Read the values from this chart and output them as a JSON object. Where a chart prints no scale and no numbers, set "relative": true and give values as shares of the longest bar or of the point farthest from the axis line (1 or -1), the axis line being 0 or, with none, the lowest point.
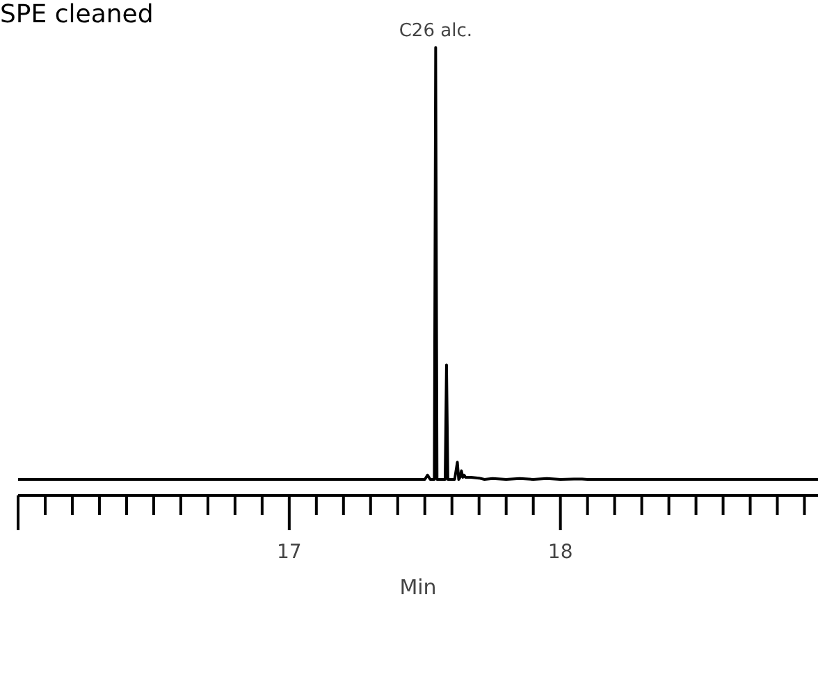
{
  "chart_data": {
    "type": "line",
    "title": "SPE cleaned",
    "xlabel": "Min",
    "relative": true,
    "grid": false,
    "marker": "none",
    "tick_labels": "x",
    "annotations": [
      {
        "text": "C26 alc.",
        "x": 17.54,
        "y": 1
      }
    ],
    "xlim": [
      16,
      18.95
    ],
    "xticks": [
      {
        "value": 16,
        "label": null
      },
      {
        "value": 16.1,
        "label": null
      },
      {
        "value": 16.2,
        "label": null
      },
      {
        "value": 16.3,
        "label": null
      },
      {
        "value": 16.4,
        "label": null
      },
      {
        "value": 16.5,
        "label": null
      },
      {
        "value": 16.6,
        "label": null
      },
      {
        "value": 16.7,
        "label": null
      },
      {
        "value": 16.8,
        "label": null
      },
      {
        "value": 16.9,
        "label": null
      },
      17,
      {
        "value": 17.1,
        "label": null
      },
      {
        "value": 17.2,
        "label": null
      },
      {
        "value": 17.3,
        "label": null
      },
      {
        "value": 17.4,
        "label": null
      },
      {
        "value": 17.5,
        "label": null
      },
      {
        "value": 17.6,
        "label": null
      },
      {
        "value": 17.7,
        "label": null
      },
      {
        "value": 17.8,
        "label": null
      },
      {
        "value": 17.9,
        "label": null
      },
      18,
      {
        "value": 18.1,
        "label": null
      },
      {
        "value": 18.2,
        "label": null
      },
      {
        "value": 18.3,
        "label": null
      },
      {
        "value": 18.4,
        "label": null
      },
      {
        "value": 18.5,
        "label": null
      },
      {
        "value": 18.6,
        "label": null
      },
      {
        "value": 18.7,
        "label": null
      },
      {
        "value": 18.8,
        "label": null
      },
      {
        "value": 18.9,
        "label": null
      }
    ],
    "series": [
      {
        "color": "#000000",
        "x": [
          16,
          17.48,
          17.5,
          17.51,
          17.52,
          17.535,
          17.54,
          17.545,
          17.57,
          17.575,
          17.58,
          17.585,
          17.6,
          17.61,
          17.62,
          17.625,
          17.63,
          17.635,
          17.64,
          17.645,
          17.65,
          17.67,
          17.7,
          17.72,
          17.75,
          17.8,
          17.85,
          17.9,
          17.95,
          18.0,
          18.05,
          18.08,
          18.1,
          18.95
        ],
        "values": [
          0,
          0,
          0,
          0.01,
          0,
          0,
          1,
          0,
          0,
          0,
          0.265,
          0,
          0,
          0,
          0.04,
          0,
          0.005,
          0.02,
          0.005,
          0.01,
          0.005,
          0.005,
          0.003,
          0,
          0.002,
          0,
          0.002,
          0,
          0.002,
          0,
          0.001,
          0.001,
          0,
          0
        ]
      }
    ]
  }
}
